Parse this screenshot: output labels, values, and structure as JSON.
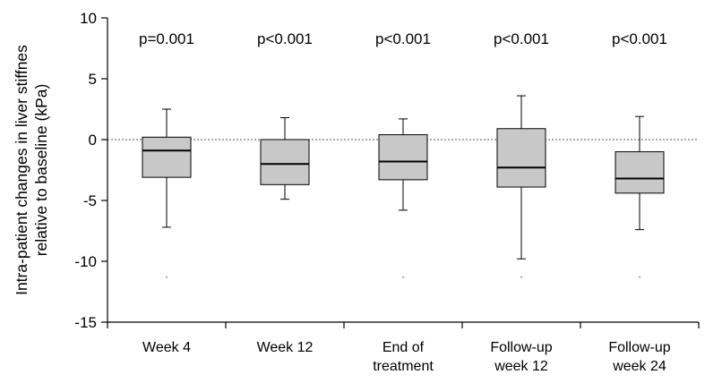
{
  "chart_data": {
    "type": "boxplot",
    "ylabel_lines": [
      "Intra-patient changes in liver stiffnes",
      "relative to baseline (kPa)"
    ],
    "ylim": [
      -15,
      10
    ],
    "yticks": [
      {
        "value": 10,
        "label": "10"
      },
      {
        "value": 5,
        "label": "5"
      },
      {
        "value": 0,
        "label": "0"
      },
      {
        "value": -5,
        "label": "-5"
      },
      {
        "value": -10,
        "label": "-10"
      },
      {
        "value": -15,
        "label": "-15"
      }
    ],
    "reference_line": 0,
    "grid": false,
    "colors": {
      "box_fill": "#c8c8c8",
      "stroke": "#000000",
      "reference_line": "#555555",
      "outlier": "#bbbbbb"
    },
    "groups": [
      {
        "label_lines": [
          "Week 4"
        ],
        "p_value": "p=0.001",
        "whisker_low": -7.2,
        "q1": -3.1,
        "median": -0.9,
        "q3": 0.2,
        "whisker_high": 2.5,
        "outlier": -11.3
      },
      {
        "label_lines": [
          "Week 12"
        ],
        "p_value": "p<0.001",
        "whisker_low": -4.9,
        "q1": -3.7,
        "median": -2.0,
        "q3": 0.0,
        "whisker_high": 1.8,
        "outlier": null
      },
      {
        "label_lines": [
          "End of",
          "treatment"
        ],
        "p_value": "p<0.001",
        "whisker_low": -5.8,
        "q1": -3.3,
        "median": -1.8,
        "q3": 0.4,
        "whisker_high": 1.7,
        "outlier": -11.3
      },
      {
        "label_lines": [
          "Follow-up",
          "week 12"
        ],
        "p_value": "p<0.001",
        "whisker_low": -9.8,
        "q1": -3.9,
        "median": -2.3,
        "q3": 0.9,
        "whisker_high": 3.6,
        "outlier": -11.3
      },
      {
        "label_lines": [
          "Follow-up",
          "week 24"
        ],
        "p_value": "p<0.001",
        "whisker_low": -7.4,
        "q1": -4.4,
        "median": -3.2,
        "q3": -1.0,
        "whisker_high": 1.9,
        "outlier": -11.3
      }
    ]
  }
}
